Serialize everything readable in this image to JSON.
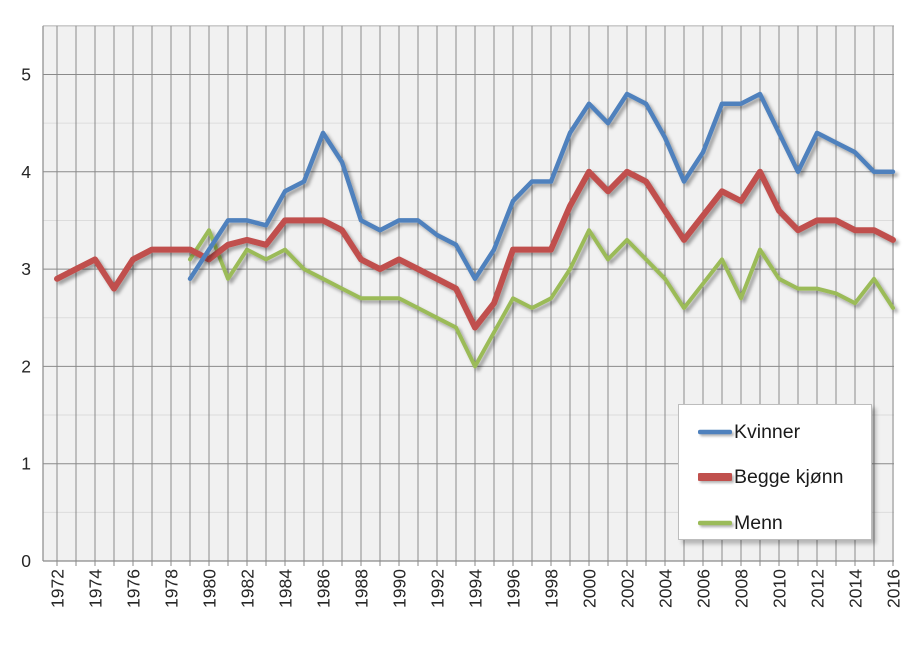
{
  "chart_data": {
    "type": "line",
    "title": "",
    "x": [
      1972,
      1973,
      1974,
      1975,
      1976,
      1977,
      1978,
      1979,
      1980,
      1981,
      1982,
      1983,
      1984,
      1985,
      1986,
      1987,
      1988,
      1989,
      1990,
      1991,
      1992,
      1993,
      1994,
      1995,
      1996,
      1997,
      1998,
      1999,
      2000,
      2001,
      2002,
      2003,
      2004,
      2005,
      2006,
      2007,
      2008,
      2009,
      2010,
      2011,
      2012,
      2013,
      2014,
      2015,
      2016
    ],
    "x_tick_labels": [
      "1972",
      "1974",
      "1976",
      "1978",
      "1980",
      "1982",
      "1984",
      "1986",
      "1988",
      "1990",
      "1992",
      "1994",
      "1996",
      "1998",
      "2000",
      "2002",
      "2004",
      "2006",
      "2008",
      "2010",
      "2012",
      "2014",
      "2016"
    ],
    "y_tick_labels": [
      "0",
      "1",
      "2",
      "3",
      "4",
      "5"
    ],
    "ylim": [
      0,
      5.5
    ],
    "y_major_step": 1,
    "y_minor_step": 0.5,
    "grid": "vertical yearly major; horizontal major dark + minor light",
    "legend_position": "inside-right-lower",
    "series": [
      {
        "name": "Kvinner",
        "color": "#4F81BD",
        "stroke_width": 4.5,
        "legend_stroke_width": 4.5,
        "values": [
          null,
          null,
          null,
          null,
          null,
          null,
          null,
          2.9,
          3.2,
          3.5,
          3.5,
          3.45,
          3.8,
          3.9,
          4.4,
          4.1,
          3.5,
          3.4,
          3.5,
          3.5,
          3.35,
          3.25,
          2.9,
          3.2,
          3.7,
          3.9,
          3.9,
          4.4,
          4.7,
          4.5,
          4.8,
          4.7,
          4.35,
          3.9,
          4.2,
          4.7,
          4.7,
          4.8,
          4.4,
          4.0,
          4.4,
          4.3,
          4.2,
          4.0,
          4.0
        ]
      },
      {
        "name": "Begge kjønn",
        "color": "#C0504D",
        "stroke_width": 6,
        "legend_stroke_width": 8,
        "values": [
          2.9,
          3.0,
          3.1,
          2.8,
          3.1,
          3.2,
          3.2,
          3.2,
          3.1,
          3.25,
          3.3,
          3.25,
          3.5,
          3.5,
          3.5,
          3.4,
          3.1,
          3.0,
          3.1,
          3.0,
          2.9,
          2.8,
          2.4,
          2.65,
          3.2,
          3.2,
          3.2,
          3.65,
          4.0,
          3.8,
          4.0,
          3.9,
          3.6,
          3.3,
          3.55,
          3.8,
          3.7,
          4.0,
          3.6,
          3.4,
          3.5,
          3.5,
          3.4,
          3.4,
          3.3
        ]
      },
      {
        "name": "Menn",
        "color": "#9BBB59",
        "stroke_width": 4,
        "legend_stroke_width": 4.5,
        "values": [
          null,
          null,
          null,
          null,
          null,
          null,
          null,
          3.1,
          3.4,
          2.9,
          3.2,
          3.1,
          3.2,
          3.0,
          2.9,
          2.8,
          2.7,
          2.7,
          2.7,
          2.6,
          2.5,
          2.4,
          2.0,
          2.35,
          2.7,
          2.6,
          2.7,
          3.0,
          3.4,
          3.1,
          3.3,
          3.1,
          2.9,
          2.6,
          2.85,
          3.1,
          2.7,
          3.2,
          2.9,
          2.8,
          2.8,
          2.75,
          2.65,
          2.9,
          2.6
        ]
      }
    ]
  },
  "colors": {
    "plot_bg": "#f1f1f1",
    "grid_major": "#8a8a8a",
    "grid_minor": "#dcdcdc",
    "plot_border_top": "#c4c4c4",
    "axis_line": "#8a8a8a",
    "axis_text": "#262626",
    "legend_bg": "#ffffff",
    "legend_border": "#bdbdbd"
  }
}
